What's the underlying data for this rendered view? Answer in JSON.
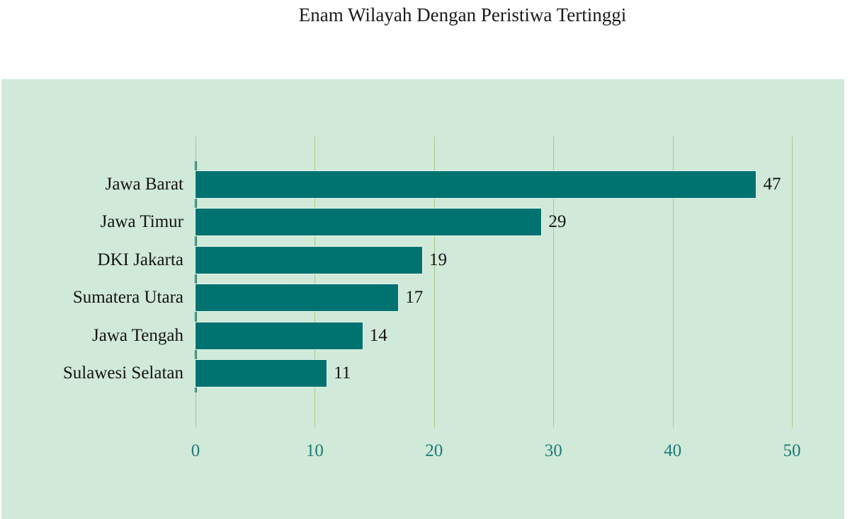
{
  "title": "Enam Wilayah Dengan Peristiwa Tertinggi",
  "colors": {
    "panel_bg": "#d1e9d8",
    "bar": "#007370",
    "gridline": "#a8c98a",
    "tick_label": "#1f7b78",
    "text": "#141414"
  },
  "chart_data": {
    "type": "bar",
    "orientation": "horizontal",
    "title": "Enam Wilayah Dengan Peristiwa Tertinggi",
    "categories": [
      "Jawa Barat",
      "Jawa Timur",
      "DKI Jakarta",
      "Sumatera Utara",
      "Jawa Tengah",
      "Sulawesi Selatan"
    ],
    "values": [
      47,
      29,
      19,
      17,
      14,
      11
    ],
    "data_labels": [
      "47",
      "29",
      "19",
      "17",
      "14",
      "11"
    ],
    "xlabel": "",
    "ylabel": "",
    "xlim": [
      0,
      50
    ],
    "xticks": [
      0,
      10,
      20,
      30,
      40,
      50
    ],
    "xtick_labels": [
      "0",
      "10",
      "20",
      "30",
      "40",
      "50"
    ],
    "grid": "vertical",
    "legend": "none"
  }
}
